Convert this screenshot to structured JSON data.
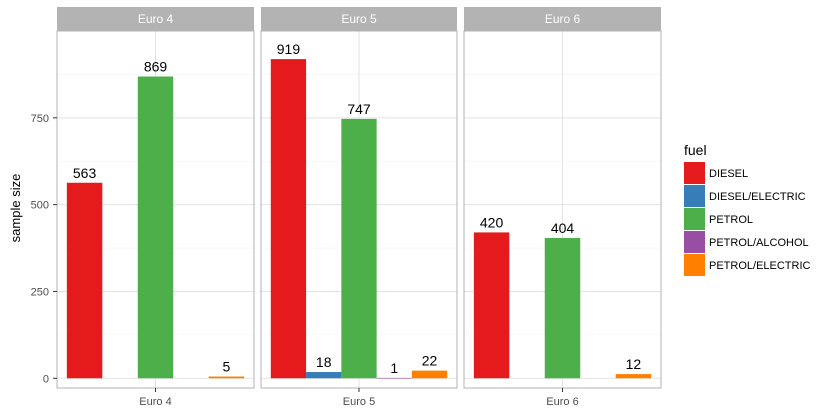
{
  "chart_data": {
    "type": "bar",
    "facets": [
      "Euro 4",
      "Euro 5",
      "Euro 6"
    ],
    "series": [
      {
        "name": "DIESEL",
        "color": "#e41a1c",
        "values": [
          563,
          919,
          420
        ]
      },
      {
        "name": "DIESEL/ELECTRIC",
        "color": "#377eb8",
        "values": [
          null,
          18,
          null
        ]
      },
      {
        "name": "PETROL",
        "color": "#4daf4a",
        "values": [
          869,
          747,
          404
        ]
      },
      {
        "name": "PETROL/ALCOHOL",
        "color": "#984ea3",
        "values": [
          null,
          1,
          null
        ]
      },
      {
        "name": "PETROL/ELECTRIC",
        "color": "#ff7f00",
        "values": [
          5,
          22,
          12
        ]
      }
    ],
    "ylabel": "sample size",
    "xlabel": "",
    "yticks": [
      0,
      250,
      500,
      750
    ],
    "ylim": [
      -28,
      1000
    ],
    "legend_title": "fuel",
    "legend_position": "right",
    "grid": true,
    "strip_color": "#b3b3b3"
  }
}
